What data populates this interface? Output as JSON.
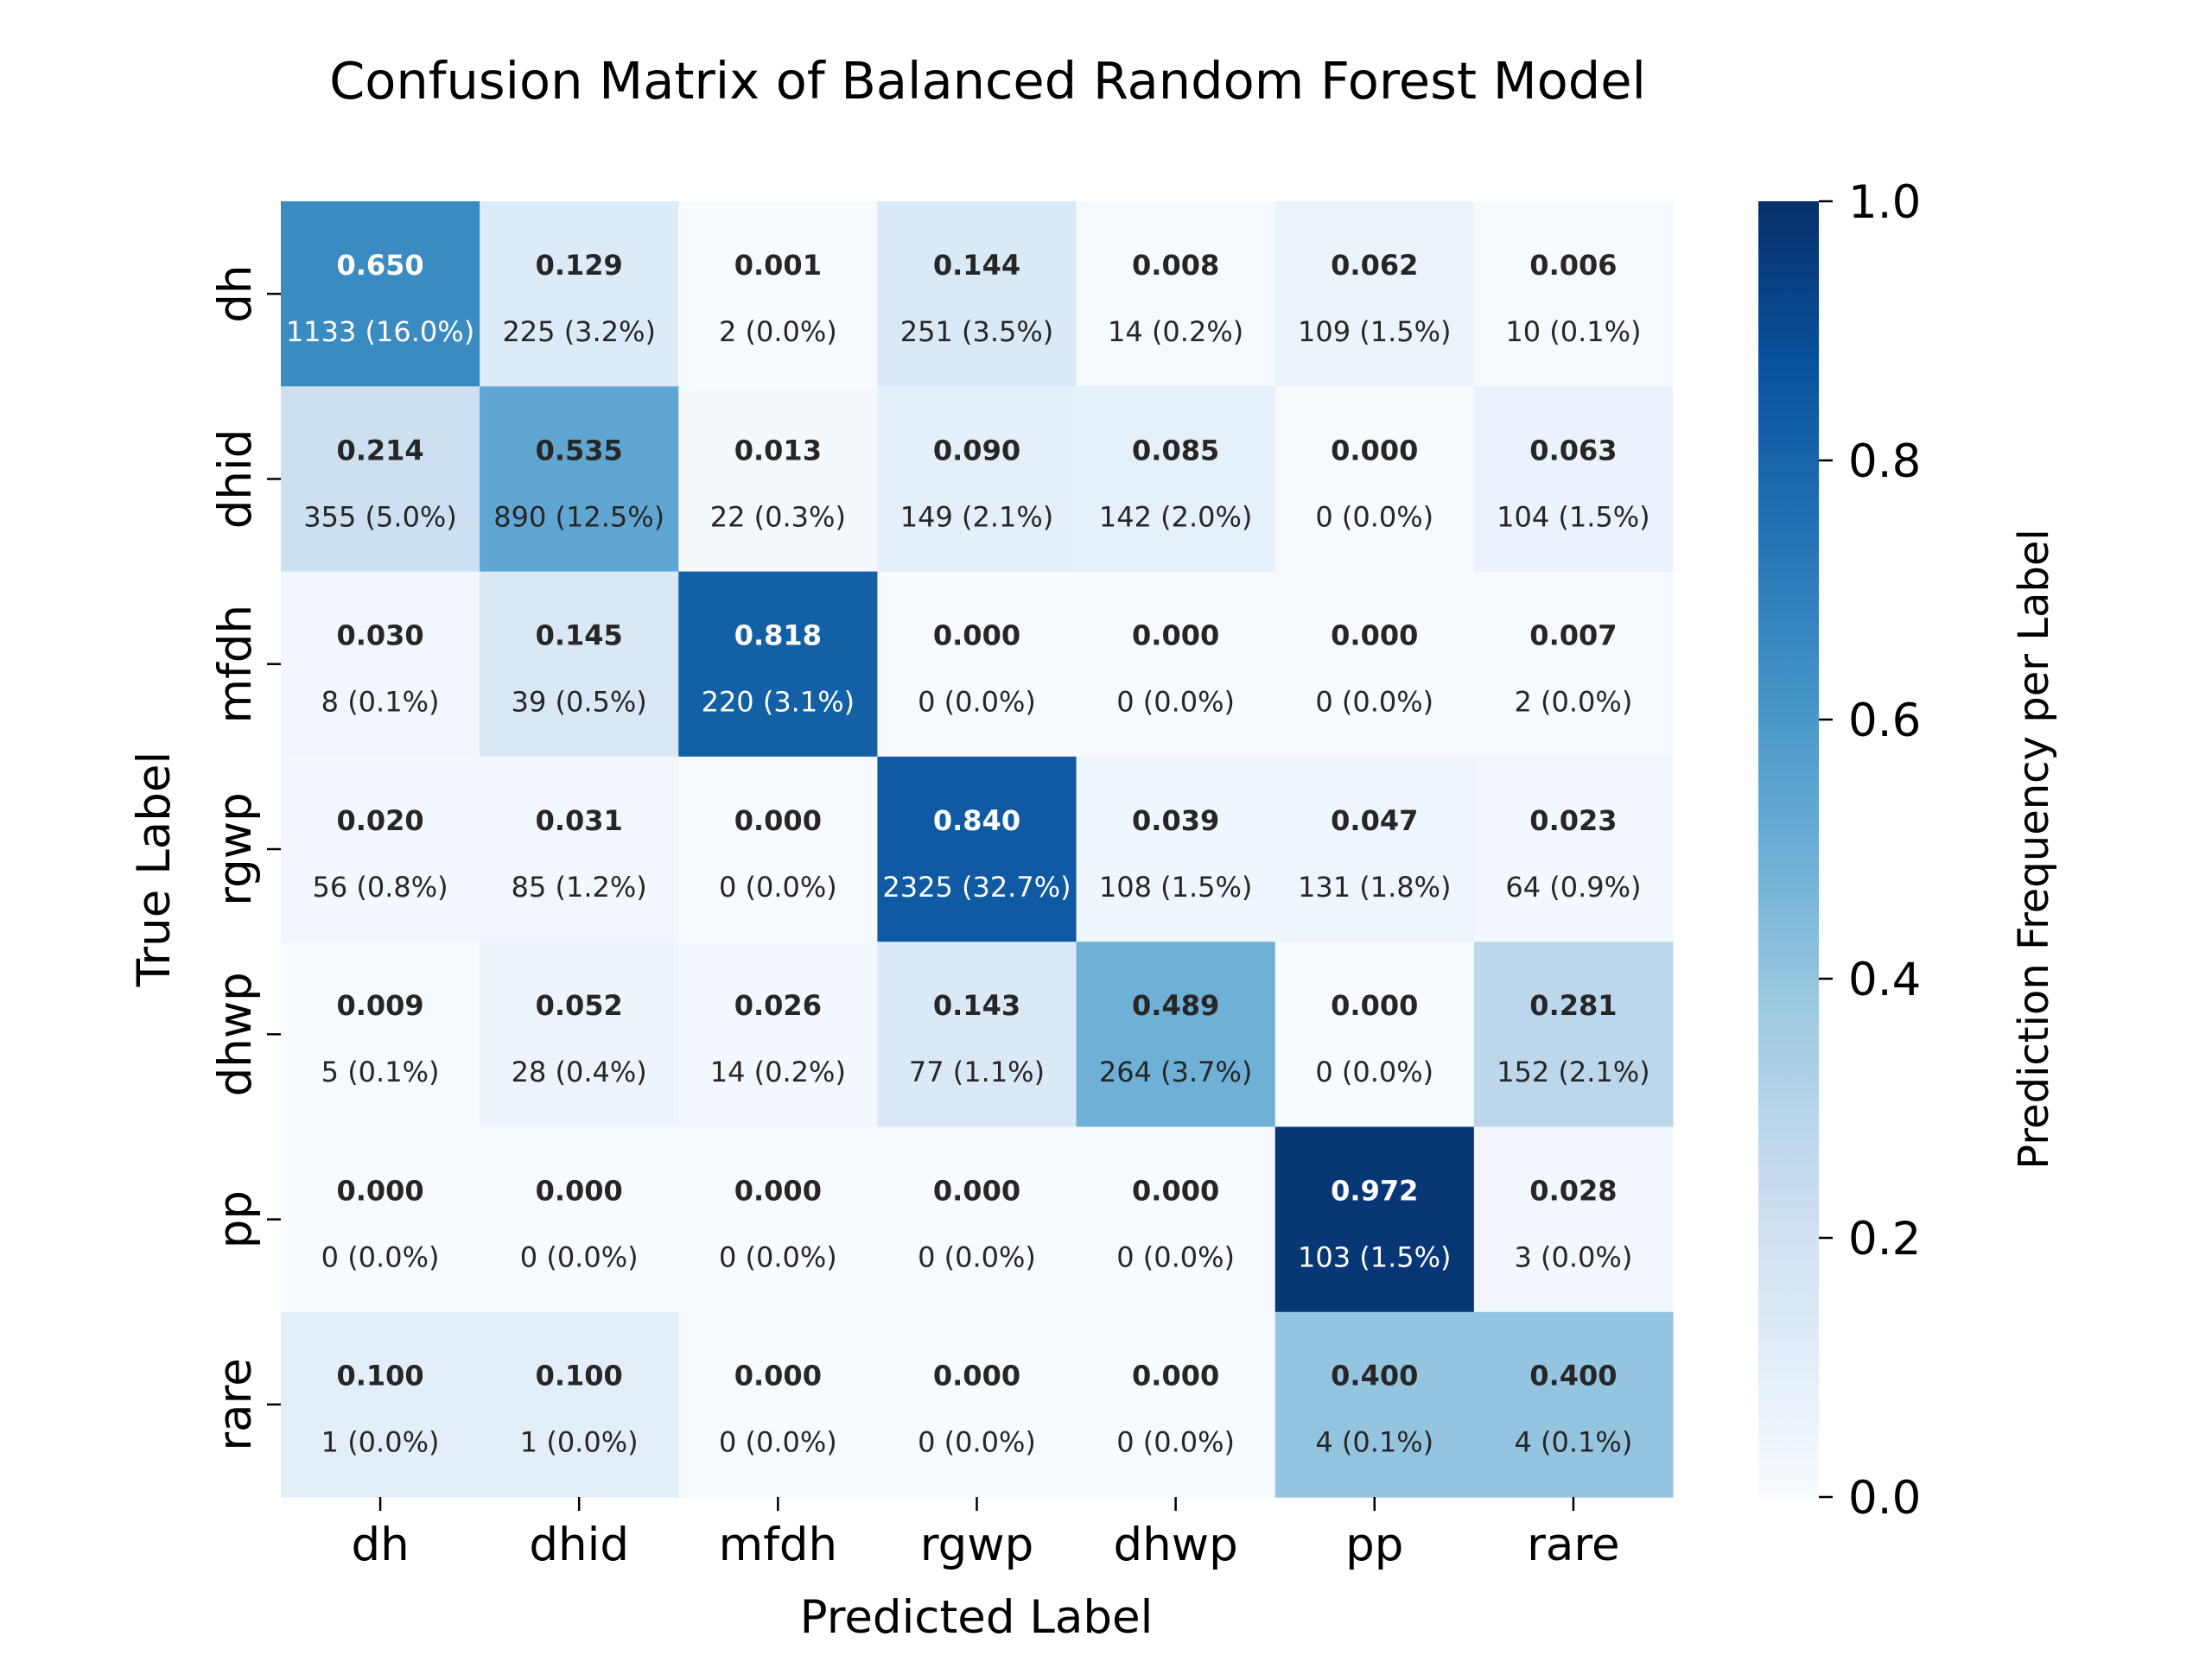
{
  "chart_data": {
    "type": "heatmap",
    "title": "Confusion Matrix of Balanced Random Forest Model",
    "xlabel": "Predicted Label",
    "ylabel": "True Label",
    "x_categories": [
      "dh",
      "dhid",
      "mfdh",
      "rgwp",
      "dhwp",
      "pp",
      "rare"
    ],
    "y_categories": [
      "dh",
      "dhid",
      "mfdh",
      "rgwp",
      "dhwp",
      "pp",
      "rare"
    ],
    "values": [
      [
        0.65,
        0.129,
        0.001,
        0.144,
        0.008,
        0.062,
        0.006
      ],
      [
        0.214,
        0.535,
        0.013,
        0.09,
        0.085,
        0.0,
        0.063
      ],
      [
        0.03,
        0.145,
        0.818,
        0.0,
        0.0,
        0.0,
        0.007
      ],
      [
        0.02,
        0.031,
        0.0,
        0.84,
        0.039,
        0.047,
        0.023
      ],
      [
        0.009,
        0.052,
        0.026,
        0.143,
        0.489,
        0.0,
        0.281
      ],
      [
        0.0,
        0.0,
        0.0,
        0.0,
        0.0,
        0.972,
        0.028
      ],
      [
        0.1,
        0.1,
        0.0,
        0.0,
        0.0,
        0.4,
        0.4
      ]
    ],
    "value_labels": [
      [
        "0.650",
        "0.129",
        "0.001",
        "0.144",
        "0.008",
        "0.062",
        "0.006"
      ],
      [
        "0.214",
        "0.535",
        "0.013",
        "0.090",
        "0.085",
        "0.000",
        "0.063"
      ],
      [
        "0.030",
        "0.145",
        "0.818",
        "0.000",
        "0.000",
        "0.000",
        "0.007"
      ],
      [
        "0.020",
        "0.031",
        "0.000",
        "0.840",
        "0.039",
        "0.047",
        "0.023"
      ],
      [
        "0.009",
        "0.052",
        "0.026",
        "0.143",
        "0.489",
        "0.000",
        "0.281"
      ],
      [
        "0.000",
        "0.000",
        "0.000",
        "0.000",
        "0.000",
        "0.972",
        "0.028"
      ],
      [
        "0.100",
        "0.100",
        "0.000",
        "0.000",
        "0.000",
        "0.400",
        "0.400"
      ]
    ],
    "count_labels": [
      [
        "1133 (16.0%)",
        "225 (3.2%)",
        "2 (0.0%)",
        "251 (3.5%)",
        "14 (0.2%)",
        "109 (1.5%)",
        "10 (0.1%)"
      ],
      [
        "355 (5.0%)",
        "890 (12.5%)",
        "22 (0.3%)",
        "149 (2.1%)",
        "142 (2.0%)",
        "0 (0.0%)",
        "104 (1.5%)"
      ],
      [
        "8 (0.1%)",
        "39 (0.5%)",
        "220 (3.1%)",
        "0 (0.0%)",
        "0 (0.0%)",
        "0 (0.0%)",
        "2 (0.0%)"
      ],
      [
        "56 (0.8%)",
        "85 (1.2%)",
        "0 (0.0%)",
        "2325 (32.7%)",
        "108 (1.5%)",
        "131 (1.8%)",
        "64 (0.9%)"
      ],
      [
        "5 (0.1%)",
        "28 (0.4%)",
        "14 (0.2%)",
        "77 (1.1%)",
        "264 (3.7%)",
        "0 (0.0%)",
        "152 (2.1%)"
      ],
      [
        "0 (0.0%)",
        "0 (0.0%)",
        "0 (0.0%)",
        "0 (0.0%)",
        "0 (0.0%)",
        "103 (1.5%)",
        "3 (0.0%)"
      ],
      [
        "1 (0.0%)",
        "1 (0.0%)",
        "0 (0.0%)",
        "0 (0.0%)",
        "0 (0.0%)",
        "4 (0.1%)",
        "4 (0.1%)"
      ]
    ],
    "colorbar": {
      "label": "Prediction Frequency per Label",
      "range": [
        0.0,
        1.0
      ],
      "ticks": [
        "0.0",
        "0.2",
        "0.4",
        "0.6",
        "0.8",
        "1.0"
      ],
      "colormap": "Blues"
    },
    "colors": {
      "text_light": "#ffffff",
      "text_dark": "#262626"
    },
    "grid": false
  }
}
